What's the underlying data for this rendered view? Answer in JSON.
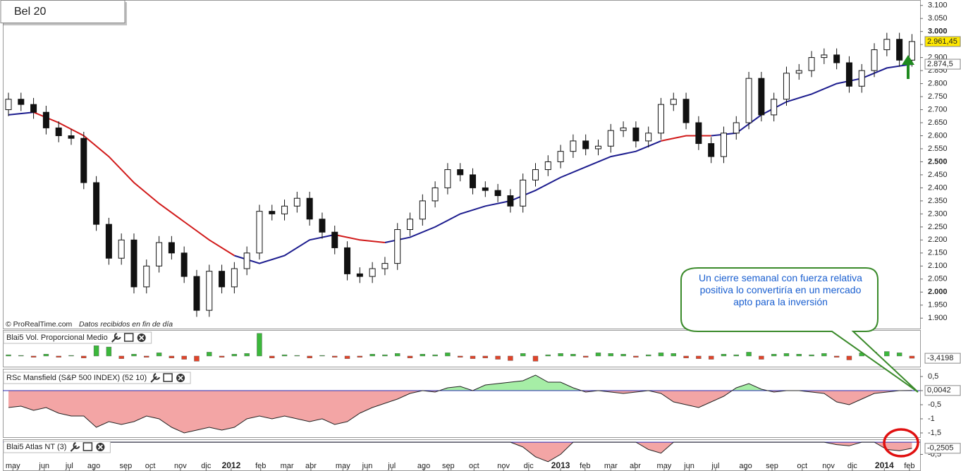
{
  "header": {
    "title": "Bel 20"
  },
  "credit": "© ProRealTime.com",
  "credit_note": "Datos recibidos en fin de día",
  "annotation": "Un cierre semanal con fuerza relativa positiva lo convertiría en un mercado apto para la inversión",
  "chart_data": [
    {
      "type": "candlestick",
      "x": [
        0,
        2,
        4,
        6,
        8,
        10,
        12,
        14,
        16,
        18,
        20,
        22,
        24,
        26,
        28,
        30,
        32,
        34,
        36,
        38,
        40,
        42,
        44,
        46,
        48,
        50,
        52,
        54,
        56,
        58,
        60,
        62,
        64,
        66,
        68,
        70,
        72,
        74,
        76,
        78,
        80,
        82,
        84,
        86,
        88,
        90,
        92,
        94,
        96,
        98,
        100,
        102,
        104,
        106,
        108,
        110,
        112,
        114,
        116,
        118,
        120,
        122,
        124,
        126,
        128,
        130,
        132,
        134,
        136,
        138,
        140,
        142,
        144
      ],
      "open": [
        2700,
        2740,
        2720,
        2690,
        2630,
        2600,
        2590,
        2420,
        2260,
        2130,
        2200,
        2020,
        2100,
        2190,
        2150,
        2060,
        1930,
        2080,
        2020,
        2090,
        2150,
        2310,
        2300,
        2330,
        2360,
        2280,
        2230,
        2170,
        2070,
        2060,
        2090,
        2110,
        2240,
        2280,
        2350,
        2400,
        2470,
        2450,
        2400,
        2390,
        2370,
        2330,
        2430,
        2470,
        2500,
        2540,
        2580,
        2550,
        2560,
        2620,
        2630,
        2580,
        2610,
        2720,
        2740,
        2650,
        2570,
        2520,
        2610,
        2650,
        2820,
        2680,
        2740,
        2840,
        2850,
        2900,
        2910,
        2880,
        2790,
        2850,
        2930,
        2970,
        2890
      ],
      "high": [
        2765,
        2765,
        2745,
        2715,
        2655,
        2625,
        2615,
        2445,
        2285,
        2225,
        2225,
        2125,
        2215,
        2215,
        2175,
        2085,
        2105,
        2105,
        2115,
        2175,
        2335,
        2335,
        2355,
        2385,
        2385,
        2305,
        2255,
        2195,
        2095,
        2115,
        2135,
        2265,
        2305,
        2375,
        2425,
        2495,
        2495,
        2475,
        2425,
        2415,
        2395,
        2455,
        2495,
        2525,
        2565,
        2605,
        2605,
        2585,
        2645,
        2655,
        2655,
        2635,
        2745,
        2765,
        2765,
        2675,
        2595,
        2635,
        2675,
        2845,
        2845,
        2765,
        2865,
        2875,
        2925,
        2935,
        2935,
        2905,
        2875,
        2955,
        2995,
        2995,
        2990
      ],
      "low": [
        2675,
        2695,
        2665,
        2605,
        2575,
        2565,
        2395,
        2235,
        2105,
        2105,
        1995,
        1995,
        2075,
        2125,
        2035,
        1905,
        1905,
        1995,
        1995,
        2065,
        2125,
        2275,
        2275,
        2305,
        2255,
        2205,
        2145,
        2045,
        2035,
        2035,
        2065,
        2085,
        2215,
        2255,
        2325,
        2375,
        2425,
        2375,
        2365,
        2345,
        2305,
        2305,
        2405,
        2445,
        2475,
        2515,
        2525,
        2525,
        2535,
        2595,
        2555,
        2555,
        2585,
        2695,
        2625,
        2545,
        2495,
        2495,
        2585,
        2625,
        2655,
        2655,
        2715,
        2815,
        2825,
        2875,
        2855,
        2765,
        2765,
        2825,
        2905,
        2865,
        2865
      ],
      "close": [
        2740,
        2720,
        2690,
        2630,
        2600,
        2590,
        2420,
        2260,
        2130,
        2200,
        2020,
        2100,
        2190,
        2150,
        2060,
        1930,
        2080,
        2020,
        2090,
        2150,
        2310,
        2300,
        2330,
        2360,
        2280,
        2230,
        2170,
        2070,
        2060,
        2090,
        2110,
        2240,
        2280,
        2350,
        2400,
        2470,
        2450,
        2400,
        2390,
        2370,
        2330,
        2430,
        2470,
        2500,
        2540,
        2580,
        2550,
        2560,
        2620,
        2630,
        2580,
        2610,
        2720,
        2740,
        2650,
        2570,
        2520,
        2610,
        2650,
        2820,
        2680,
        2740,
        2840,
        2850,
        2900,
        2910,
        2880,
        2790,
        2850,
        2930,
        2970,
        2890,
        2961.45
      ],
      "close_label": "2.961,45",
      "up_color": "#ffffff",
      "down_color": "#111111",
      "series": [
        {
          "color": "#1c1c8e",
          "x": [
            0,
            4,
            8,
            12,
            16,
            20,
            24,
            28,
            32,
            36,
            40,
            44,
            48,
            52,
            56,
            60,
            64,
            68,
            72,
            76,
            80,
            84,
            88,
            92,
            96,
            100,
            104,
            108,
            112,
            116,
            120,
            124,
            128,
            132,
            136,
            140,
            144
          ],
          "values": [
            2680,
            2690,
            null,
            null,
            null,
            null,
            null,
            null,
            null,
            2140,
            2110,
            2140,
            2200,
            2220,
            null,
            2190,
            2210,
            2250,
            2300,
            2330,
            2350,
            2390,
            2440,
            2480,
            2520,
            2540,
            2580,
            null,
            2600,
            2610,
            2680,
            2730,
            2760,
            2800,
            2820,
            2860,
            2874.5
          ],
          "last_label": "2.874,5"
        },
        {
          "color": "#d11a1a",
          "x": [
            0,
            4,
            8,
            12,
            16,
            20,
            24,
            28,
            32,
            36,
            40,
            44,
            48,
            52,
            56,
            60,
            64,
            68,
            72,
            76,
            80,
            84,
            88,
            92,
            96,
            100,
            104,
            108,
            112,
            116,
            120,
            124,
            128,
            132,
            136,
            140,
            144
          ],
          "values": [
            null,
            2690,
            2650,
            2600,
            2520,
            2420,
            2340,
            2270,
            2200,
            2140,
            null,
            null,
            null,
            2220,
            2200,
            2190,
            null,
            null,
            null,
            null,
            null,
            null,
            null,
            null,
            null,
            null,
            2580,
            2600,
            2600,
            null,
            null,
            null,
            null,
            null,
            null,
            null,
            null
          ]
        }
      ],
      "xlim": [
        -0.9,
        145.3
      ],
      "xticks": [
        {
          "value": 0.7,
          "label": "may"
        },
        {
          "value": 5.7,
          "label": "jun"
        },
        {
          "value": 9.7,
          "label": "jul"
        },
        {
          "value": 13.6,
          "label": "ago"
        },
        {
          "value": 18.7,
          "label": "sep"
        },
        {
          "value": 22.6,
          "label": "oct"
        },
        {
          "value": 27.4,
          "label": "nov"
        },
        {
          "value": 31.5,
          "label": "dic"
        },
        {
          "value": 35.5,
          "label": "2012"
        },
        {
          "value": 40.2,
          "label": "feb"
        },
        {
          "value": 44.4,
          "label": "mar"
        },
        {
          "value": 48.2,
          "label": "abr"
        },
        {
          "value": 53.3,
          "label": "may"
        },
        {
          "value": 57.2,
          "label": "jun"
        },
        {
          "value": 61.1,
          "label": "jul"
        },
        {
          "value": 66.2,
          "label": "ago"
        },
        {
          "value": 70.1,
          "label": "sep"
        },
        {
          "value": 74.2,
          "label": "oct"
        },
        {
          "value": 78.9,
          "label": "nov"
        },
        {
          "value": 82.9,
          "label": "dic"
        },
        {
          "value": 88,
          "label": "2013"
        },
        {
          "value": 91.9,
          "label": "feb"
        },
        {
          "value": 96,
          "label": "mar"
        },
        {
          "value": 99.9,
          "label": "abr"
        },
        {
          "value": 104.5,
          "label": "may"
        },
        {
          "value": 108.5,
          "label": "jun"
        },
        {
          "value": 112.7,
          "label": "jul"
        },
        {
          "value": 117.5,
          "label": "ago"
        },
        {
          "value": 121.7,
          "label": "sep"
        },
        {
          "value": 126.5,
          "label": "oct"
        },
        {
          "value": 130.7,
          "label": "nov"
        },
        {
          "value": 134.5,
          "label": "dic"
        },
        {
          "value": 139.6,
          "label": "2014"
        },
        {
          "value": 143.6,
          "label": "feb"
        }
      ],
      "ylim": [
        1860,
        3110
      ],
      "yticks": [
        {
          "value": 1900,
          "label": "1.900"
        },
        {
          "value": 1950,
          "label": "1.950"
        },
        {
          "value": 2000,
          "label": "2.000"
        },
        {
          "value": 2050,
          "label": "2.050"
        },
        {
          "value": 2100,
          "label": "2.100"
        },
        {
          "value": 2150,
          "label": "2.150"
        },
        {
          "value": 2200,
          "label": "2.200"
        },
        {
          "value": 2250,
          "label": "2.250"
        },
        {
          "value": 2300,
          "label": "2.300"
        },
        {
          "value": 2350,
          "label": "2.350"
        },
        {
          "value": 2400,
          "label": "2.400"
        },
        {
          "value": 2450,
          "label": "2.450"
        },
        {
          "value": 2500,
          "label": "2.500"
        },
        {
          "value": 2550,
          "label": "2.550"
        },
        {
          "value": 2600,
          "label": "2.600"
        },
        {
          "value": 2650,
          "label": "2.650"
        },
        {
          "value": 2700,
          "label": "2.700"
        },
        {
          "value": 2750,
          "label": "2.750"
        },
        {
          "value": 2800,
          "label": "2.800"
        },
        {
          "value": 2850,
          "label": "2.850"
        },
        {
          "value": 2900,
          "label": "2.900"
        },
        {
          "value": 2950,
          "label": "2.950"
        },
        {
          "value": 3000,
          "label": "3.000"
        },
        {
          "value": 3050,
          "label": "3.050"
        },
        {
          "value": 3100,
          "label": "3.100"
        }
      ]
    },
    {
      "type": "bar",
      "title": "Blai5 Vol. Proporcional Medio",
      "values": [
        2,
        1,
        -2,
        3,
        -2,
        1,
        -3,
        16,
        14,
        -4,
        3,
        -2,
        5,
        -3,
        -5,
        -8,
        6,
        -2,
        3,
        4,
        35,
        -3,
        2,
        1,
        -3,
        1,
        -2,
        -4,
        -2,
        3,
        2,
        4,
        -3,
        3,
        2,
        5,
        -2,
        -4,
        -3,
        -5,
        -7,
        4,
        -8,
        2,
        4,
        3,
        -2,
        5,
        4,
        3,
        -2,
        2,
        5,
        4,
        -3,
        -4,
        -5,
        3,
        2,
        6,
        -5,
        3,
        4,
        3,
        2,
        4,
        -2,
        -6,
        5,
        6,
        7,
        5,
        -3.4198
      ],
      "last_label": "-3,4198",
      "up_color": "#3bb83b",
      "down_color": "#e0442a",
      "ylim": [
        -12,
        38
      ]
    },
    {
      "type": "area",
      "title": "RSc Mansfield (S&P 500 INDEX) (52 10)",
      "values": [
        -0.6,
        -0.55,
        -0.7,
        -0.6,
        -0.8,
        -0.9,
        -0.9,
        -1.3,
        -1.1,
        -1.2,
        -1.1,
        -0.9,
        -1.0,
        -1.3,
        -1.5,
        -1.4,
        -1.3,
        -1.4,
        -1.3,
        -1.0,
        -0.9,
        -1.0,
        -0.9,
        -1.0,
        -1.1,
        -1.0,
        -1.2,
        -1.1,
        -0.8,
        -0.6,
        -0.45,
        -0.3,
        -0.1,
        0.0,
        -0.05,
        0.1,
        0.15,
        0.0,
        0.2,
        0.25,
        0.3,
        0.35,
        0.55,
        0.3,
        0.3,
        0.1,
        -0.05,
        0.0,
        -0.05,
        -0.1,
        -0.05,
        0.0,
        -0.1,
        -0.4,
        -0.5,
        -0.6,
        -0.4,
        -0.2,
        0.1,
        0.25,
        0.05,
        -0.05,
        0.0,
        0.0,
        -0.05,
        -0.1,
        -0.4,
        -0.5,
        -0.3,
        -0.1,
        -0.05,
        0.0,
        0.0042
      ],
      "last_label": "0,0042",
      "pos_color": "#a6eea6",
      "neg_color": "#f3a5a5",
      "reference_line": 0,
      "ylim": [
        -1.65,
        0.75
      ],
      "yticks": [
        {
          "value": 0.5,
          "label": "0,5"
        },
        0,
        {
          "value": -0.5,
          "label": "-0,5"
        },
        -1,
        {
          "value": -1.5,
          "label": "-1,5"
        }
      ]
    },
    {
      "type": "area",
      "title": "Blai5 Atlas NT (3)",
      "values": [
        -0.3,
        -0.35,
        -0.1,
        0,
        0,
        0,
        0,
        0,
        0,
        0,
        0,
        0,
        0,
        0,
        0,
        0,
        0,
        0,
        0,
        0,
        0,
        0,
        0,
        0,
        0,
        0,
        0,
        0,
        0,
        0,
        0,
        0,
        0,
        0,
        0,
        0,
        0,
        0,
        0,
        0,
        0,
        -0.2,
        -0.6,
        -0.8,
        -0.5,
        0,
        0,
        0,
        0,
        0,
        0,
        -0.3,
        -0.45,
        0,
        0,
        0,
        0,
        0,
        0,
        0,
        0,
        0,
        0,
        0,
        0,
        0,
        -0.1,
        -0.15,
        0,
        0,
        -0.3,
        -0.35,
        -0.2505
      ],
      "last_label": "-0,2505",
      "pos_color": "#a6eea6",
      "neg_color": "#f3a5a5",
      "reference_line": 0,
      "ylim": [
        -1.18,
        0.09
      ],
      "yticks": [
        {
          "value": -0.5,
          "label": "-0,5"
        }
      ]
    }
  ]
}
